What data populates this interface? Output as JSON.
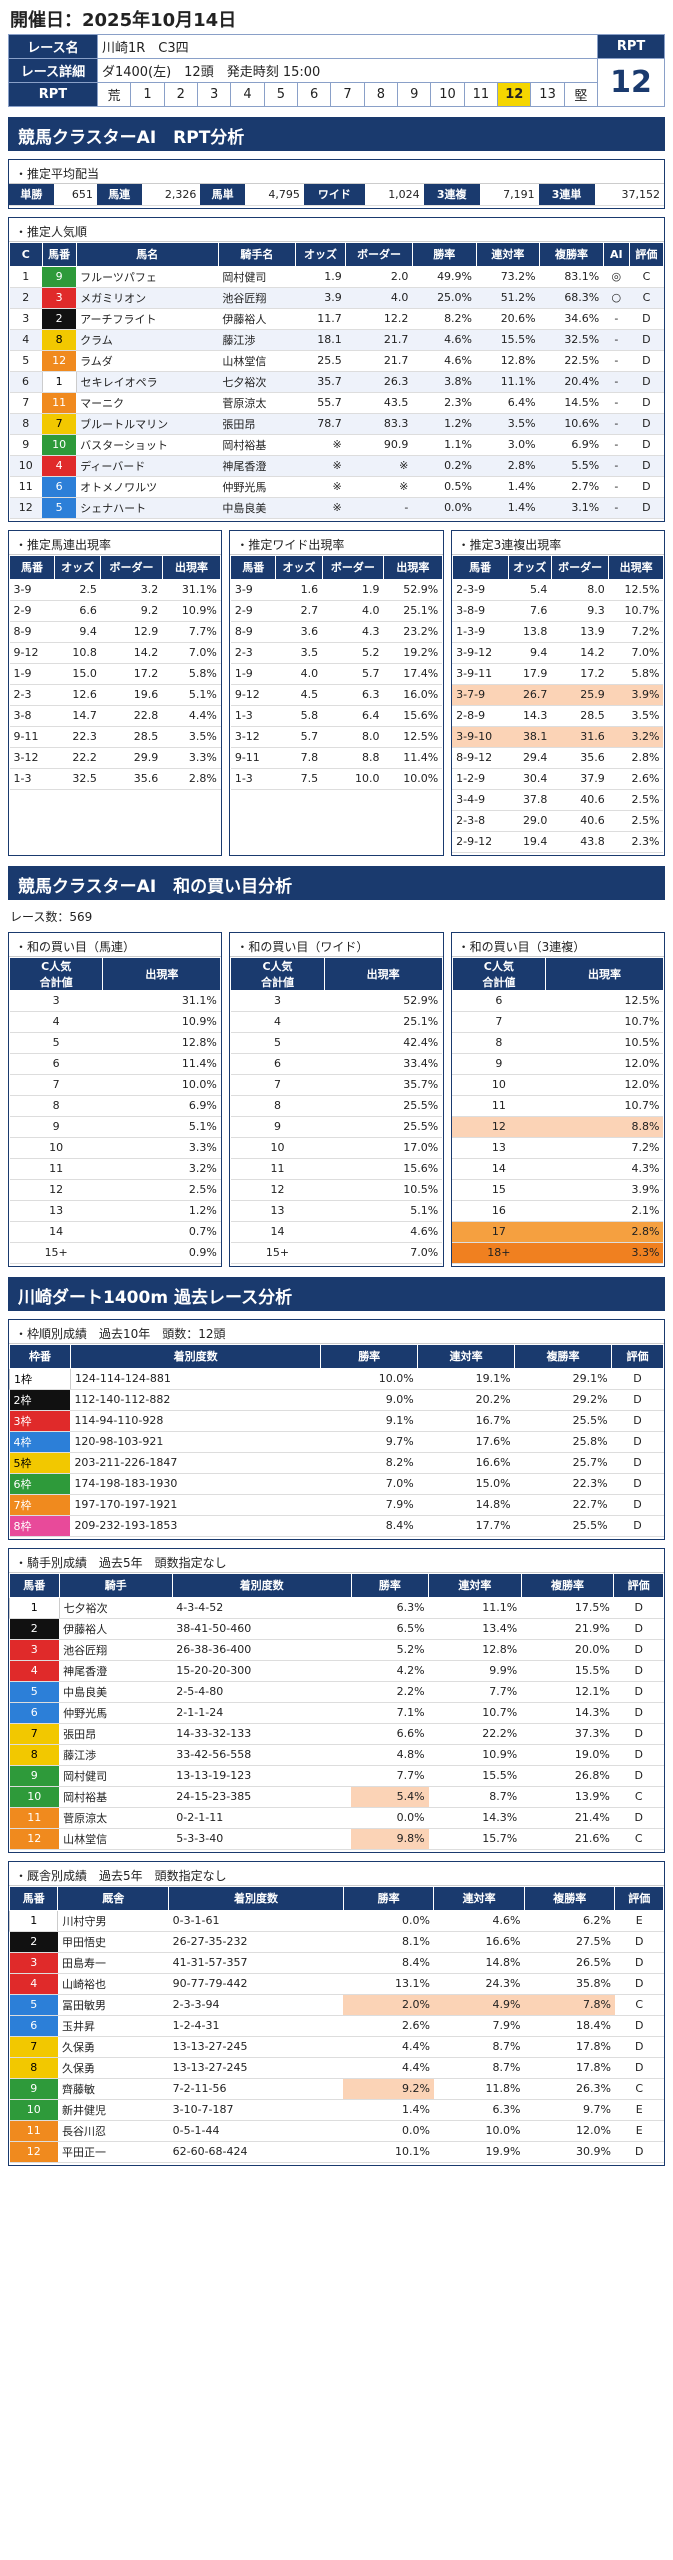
{
  "header": {
    "date_label": "開催日：2025年10月14日"
  },
  "race": {
    "name_label": "レース名",
    "name": "川崎1R　C3四",
    "detail_label": "レース詳細",
    "detail": "ダ1400(左)　12頭　発走時刻 15:00",
    "rpt_label": "RPT",
    "rpt_row_label": "RPT",
    "rpt_value": "12",
    "rpt_scale": [
      "荒",
      "1",
      "2",
      "3",
      "4",
      "5",
      "6",
      "7",
      "8",
      "9",
      "10",
      "11",
      "12",
      "13",
      "堅"
    ],
    "rpt_highlight": "12"
  },
  "s1": {
    "title": "競馬クラスターAI　RPT分析"
  },
  "payout": {
    "title": "・推定平均配当",
    "items": [
      [
        "単勝",
        "651"
      ],
      [
        "馬連",
        "2,326"
      ],
      [
        "馬単",
        "4,795"
      ],
      [
        "ワイド",
        "1,024"
      ],
      [
        "3連複",
        "7,191"
      ],
      [
        "3連単",
        "37,152"
      ]
    ]
  },
  "pop": {
    "title": "・推定人気順",
    "headers": [
      "C",
      "馬番",
      "馬名",
      "騎手名",
      "オッズ",
      "ボーダー",
      "勝率",
      "連対率",
      "複勝率",
      "AI",
      "評価"
    ],
    "rows": [
      [
        "1",
        "9",
        "フルーツパフェ",
        "岡村健司",
        "1.9",
        "2.0",
        "49.9%",
        "73.2%",
        "83.1%",
        "◎",
        "C"
      ],
      [
        "2",
        "3",
        "メガミリオン",
        "池谷匠翔",
        "3.9",
        "4.0",
        "25.0%",
        "51.2%",
        "68.3%",
        "○",
        "C"
      ],
      [
        "3",
        "2",
        "アーチフライト",
        "伊藤裕人",
        "11.7",
        "12.2",
        "8.2%",
        "20.6%",
        "34.6%",
        "-",
        "D"
      ],
      [
        "4",
        "8",
        "クラム",
        "藤江渉",
        "18.1",
        "21.7",
        "4.6%",
        "15.5%",
        "32.5%",
        "-",
        "D"
      ],
      [
        "5",
        "12",
        "ラムダ",
        "山林堂信",
        "25.5",
        "21.7",
        "4.6%",
        "12.8%",
        "22.5%",
        "-",
        "D"
      ],
      [
        "6",
        "1",
        "セキレイオペラ",
        "七夕裕次",
        "35.7",
        "26.3",
        "3.8%",
        "11.1%",
        "20.4%",
        "-",
        "D"
      ],
      [
        "7",
        "11",
        "マーニク",
        "菅原涼太",
        "55.7",
        "43.5",
        "2.3%",
        "6.4%",
        "14.5%",
        "-",
        "D"
      ],
      [
        "8",
        "7",
        "ブルートルマリン",
        "張田昂",
        "78.7",
        "83.3",
        "1.2%",
        "3.5%",
        "10.6%",
        "-",
        "D"
      ],
      [
        "9",
        "10",
        "バスターショット",
        "岡村裕基",
        "※",
        "90.9",
        "1.1%",
        "3.0%",
        "6.9%",
        "-",
        "D"
      ],
      [
        "10",
        "4",
        "ディーバード",
        "神尾香澄",
        "※",
        "※",
        "0.2%",
        "2.8%",
        "5.5%",
        "-",
        "D"
      ],
      [
        "11",
        "6",
        "オトメノワルツ",
        "仲野光馬",
        "※",
        "※",
        "0.5%",
        "1.4%",
        "2.7%",
        "-",
        "D"
      ],
      [
        "12",
        "5",
        "シェナハート",
        "中島良美",
        "※",
        "-",
        "0.0%",
        "1.4%",
        "3.1%",
        "-",
        "D"
      ]
    ]
  },
  "umaren": {
    "title": "・推定馬連出現率",
    "headers": [
      "馬番",
      "オッズ",
      "ボーダー",
      "出現率"
    ],
    "rows": [
      [
        "3-9",
        "2.5",
        "3.2",
        "31.1%"
      ],
      [
        "2-9",
        "6.6",
        "9.2",
        "10.9%"
      ],
      [
        "8-9",
        "9.4",
        "12.9",
        "7.7%"
      ],
      [
        "9-12",
        "10.8",
        "14.2",
        "7.0%"
      ],
      [
        "1-9",
        "15.0",
        "17.2",
        "5.8%"
      ],
      [
        "2-3",
        "12.6",
        "19.6",
        "5.1%"
      ],
      [
        "3-8",
        "14.7",
        "22.8",
        "4.4%"
      ],
      [
        "9-11",
        "22.3",
        "28.5",
        "3.5%"
      ],
      [
        "3-12",
        "22.2",
        "29.9",
        "3.3%"
      ],
      [
        "1-3",
        "32.5",
        "35.6",
        "2.8%"
      ]
    ]
  },
  "wide": {
    "title": "・推定ワイド出現率",
    "headers": [
      "馬番",
      "オッズ",
      "ボーダー",
      "出現率"
    ],
    "rows": [
      [
        "3-9",
        "1.6",
        "1.9",
        "52.9%"
      ],
      [
        "2-9",
        "2.7",
        "4.0",
        "25.1%"
      ],
      [
        "8-9",
        "3.6",
        "4.3",
        "23.2%"
      ],
      [
        "2-3",
        "3.5",
        "5.2",
        "19.2%"
      ],
      [
        "1-9",
        "4.0",
        "5.7",
        "17.4%"
      ],
      [
        "9-12",
        "4.5",
        "6.3",
        "16.0%"
      ],
      [
        "1-3",
        "5.8",
        "6.4",
        "15.6%"
      ],
      [
        "3-12",
        "5.7",
        "8.0",
        "12.5%"
      ],
      [
        "9-11",
        "7.8",
        "8.8",
        "11.4%"
      ],
      [
        "1-3",
        "7.5",
        "10.0",
        "10.0%"
      ]
    ]
  },
  "sanrenpuku": {
    "title": "・推定3連複出現率",
    "headers": [
      "馬番",
      "オッズ",
      "ボーダー",
      "出現率"
    ],
    "rows": [
      [
        "2-3-9",
        "5.4",
        "8.0",
        "12.5%"
      ],
      [
        "3-8-9",
        "7.6",
        "9.3",
        "10.7%"
      ],
      [
        "1-3-9",
        "13.8",
        "13.9",
        "7.2%"
      ],
      [
        "3-9-12",
        "9.4",
        "14.2",
        "7.0%"
      ],
      [
        "3-9-11",
        "17.9",
        "17.2",
        "5.8%"
      ],
      [
        "3-7-9",
        "26.7",
        "25.9",
        "3.9%"
      ],
      [
        "2-8-9",
        "14.3",
        "28.5",
        "3.5%"
      ],
      [
        "3-9-10",
        "38.1",
        "31.6",
        "3.2%"
      ],
      [
        "8-9-12",
        "29.4",
        "35.6",
        "2.8%"
      ],
      [
        "1-2-9",
        "30.4",
        "37.9",
        "2.6%"
      ],
      [
        "3-4-9",
        "37.8",
        "40.6",
        "2.5%"
      ],
      [
        "2-3-8",
        "29.0",
        "40.6",
        "2.5%"
      ],
      [
        "2-9-12",
        "19.4",
        "43.8",
        "2.3%"
      ]
    ],
    "peach": [
      5,
      7
    ]
  },
  "s2": {
    "title": "競馬クラスターAI　和の買い目分析",
    "race_count": "レース数：569"
  },
  "wa_umaren": {
    "title": "・和の買い目（馬連）",
    "headers": [
      "C人気\n合計値",
      "出現率"
    ],
    "rows": [
      [
        "3",
        "31.1%"
      ],
      [
        "4",
        "10.9%"
      ],
      [
        "5",
        "12.8%"
      ],
      [
        "6",
        "11.4%"
      ],
      [
        "7",
        "10.0%"
      ],
      [
        "8",
        "6.9%"
      ],
      [
        "9",
        "5.1%"
      ],
      [
        "10",
        "3.3%"
      ],
      [
        "11",
        "3.2%"
      ],
      [
        "12",
        "2.5%"
      ],
      [
        "13",
        "1.2%"
      ],
      [
        "14",
        "0.7%"
      ],
      [
        "15+",
        "0.9%"
      ]
    ]
  },
  "wa_wide": {
    "title": "・和の買い目（ワイド）",
    "headers": [
      "C人気\n合計値",
      "出現率"
    ],
    "rows": [
      [
        "3",
        "52.9%"
      ],
      [
        "4",
        "25.1%"
      ],
      [
        "5",
        "42.4%"
      ],
      [
        "6",
        "33.4%"
      ],
      [
        "7",
        "35.7%"
      ],
      [
        "8",
        "25.5%"
      ],
      [
        "9",
        "25.5%"
      ],
      [
        "10",
        "17.0%"
      ],
      [
        "11",
        "15.6%"
      ],
      [
        "12",
        "10.5%"
      ],
      [
        "13",
        "5.1%"
      ],
      [
        "14",
        "4.6%"
      ],
      [
        "15+",
        "7.0%"
      ]
    ]
  },
  "wa_3f": {
    "title": "・和の買い目（3連複）",
    "headers": [
      "C人気\n合計値",
      "出現率"
    ],
    "rows": [
      [
        "6",
        "12.5%"
      ],
      [
        "7",
        "10.7%"
      ],
      [
        "8",
        "10.5%"
      ],
      [
        "9",
        "12.0%"
      ],
      [
        "10",
        "12.0%"
      ],
      [
        "11",
        "10.7%"
      ],
      [
        "12",
        "8.8%"
      ],
      [
        "13",
        "7.2%"
      ],
      [
        "14",
        "4.3%"
      ],
      [
        "15",
        "3.9%"
      ],
      [
        "16",
        "2.1%"
      ],
      [
        "17",
        "2.8%"
      ],
      [
        "18+",
        "3.3%"
      ]
    ]
  },
  "s3": {
    "title": "川崎ダート1400m 過去レース分析"
  },
  "waku": {
    "title": "・枠順別成績　過去10年　頭数：12頭",
    "headers": [
      "枠番",
      "着別度数",
      "勝率",
      "連対率",
      "複勝率",
      "評価"
    ],
    "rows": [
      [
        "1枠",
        "124-114-124-881",
        "10.0%",
        "19.1%",
        "29.1%",
        "D"
      ],
      [
        "2枠",
        "112-140-112-882",
        "9.0%",
        "20.2%",
        "29.2%",
        "D"
      ],
      [
        "3枠",
        "114-94-110-928",
        "9.1%",
        "16.7%",
        "25.5%",
        "D"
      ],
      [
        "4枠",
        "120-98-103-921",
        "9.7%",
        "17.6%",
        "25.8%",
        "D"
      ],
      [
        "5枠",
        "203-211-226-1847",
        "8.2%",
        "16.6%",
        "25.7%",
        "D"
      ],
      [
        "6枠",
        "174-198-183-1930",
        "7.0%",
        "15.0%",
        "22.3%",
        "D"
      ],
      [
        "7枠",
        "197-170-197-1921",
        "7.9%",
        "14.8%",
        "22.7%",
        "D"
      ],
      [
        "8枠",
        "209-232-193-1853",
        "8.4%",
        "17.7%",
        "25.5%",
        "D"
      ]
    ]
  },
  "jockey": {
    "title": "・騎手別成績　過去5年　頭数指定なし",
    "headers": [
      "馬番",
      "騎手",
      "着別度数",
      "勝率",
      "連対率",
      "複勝率",
      "評価"
    ],
    "rows": [
      [
        "1",
        "七夕裕次",
        "4-3-4-52",
        "6.3%",
        "11.1%",
        "17.5%",
        "D"
      ],
      [
        "2",
        "伊藤裕人",
        "38-41-50-460",
        "6.5%",
        "13.4%",
        "21.9%",
        "D"
      ],
      [
        "3",
        "池谷匠翔",
        "26-38-36-400",
        "5.2%",
        "12.8%",
        "20.0%",
        "D"
      ],
      [
        "4",
        "神尾香澄",
        "15-20-20-300",
        "4.2%",
        "9.9%",
        "15.5%",
        "D"
      ],
      [
        "5",
        "中島良美",
        "2-5-4-80",
        "2.2%",
        "7.7%",
        "12.1%",
        "D"
      ],
      [
        "6",
        "仲野光馬",
        "2-1-1-24",
        "7.1%",
        "10.7%",
        "14.3%",
        "D"
      ],
      [
        "7",
        "張田昂",
        "14-33-32-133",
        "6.6%",
        "22.2%",
        "37.3%",
        "D"
      ],
      [
        "8",
        "藤江渉",
        "33-42-56-558",
        "4.8%",
        "10.9%",
        "19.0%",
        "D"
      ],
      [
        "9",
        "岡村健司",
        "13-13-19-123",
        "7.7%",
        "15.5%",
        "26.8%",
        "D"
      ],
      [
        "10",
        "岡村裕基",
        "24-15-23-385",
        "5.4%",
        "8.7%",
        "13.9%",
        "C"
      ],
      [
        "11",
        "菅原涼太",
        "0-2-1-11",
        "0.0%",
        "14.3%",
        "21.4%",
        "D"
      ],
      [
        "12",
        "山林堂信",
        "5-3-3-40",
        "9.8%",
        "15.7%",
        "21.6%",
        "C"
      ]
    ]
  },
  "trainer": {
    "title": "・厩舎別成績　過去5年　頭数指定なし",
    "headers": [
      "馬番",
      "厩舎",
      "着別度数",
      "勝率",
      "連対率",
      "複勝率",
      "評価"
    ],
    "rows": [
      [
        "1",
        "川村守男",
        "0-3-1-61",
        "0.0%",
        "4.6%",
        "6.2%",
        "E"
      ],
      [
        "2",
        "甲田悟史",
        "26-27-35-232",
        "8.1%",
        "16.6%",
        "27.5%",
        "D"
      ],
      [
        "3",
        "田島寿一",
        "41-31-57-357",
        "8.4%",
        "14.8%",
        "26.5%",
        "D"
      ],
      [
        "4",
        "山崎裕也",
        "90-77-79-442",
        "13.1%",
        "24.3%",
        "35.8%",
        "D"
      ],
      [
        "5",
        "冨田敏男",
        "2-3-3-94",
        "2.0%",
        "4.9%",
        "7.8%",
        "C"
      ],
      [
        "6",
        "玉井昇",
        "1-2-4-31",
        "2.6%",
        "7.9%",
        "18.4%",
        "D"
      ],
      [
        "7",
        "久保勇",
        "13-13-27-245",
        "4.4%",
        "8.7%",
        "17.8%",
        "D"
      ],
      [
        "8",
        "久保勇",
        "13-13-27-245",
        "4.4%",
        "8.7%",
        "17.8%",
        "D"
      ],
      [
        "9",
        "齊藤敏",
        "7-2-11-56",
        "9.2%",
        "11.8%",
        "26.3%",
        "C"
      ],
      [
        "10",
        "新井健児",
        "3-10-7-187",
        "1.4%",
        "6.3%",
        "9.7%",
        "E"
      ],
      [
        "11",
        "長谷川忍",
        "0-5-1-44",
        "0.0%",
        "10.0%",
        "12.0%",
        "E"
      ],
      [
        "12",
        "平田正一",
        "62-60-68-424",
        "10.1%",
        "19.9%",
        "30.9%",
        "D"
      ]
    ]
  }
}
